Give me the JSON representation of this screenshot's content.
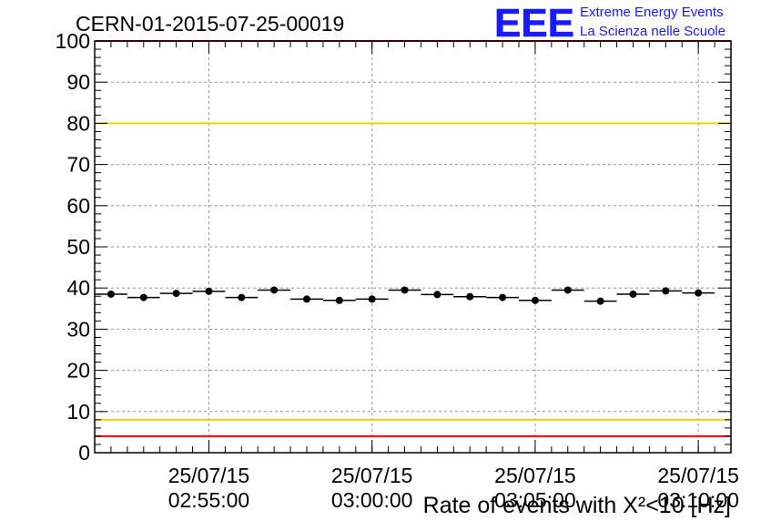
{
  "chart_data": {
    "type": "scatter",
    "title": "CERN-01-2015-07-25-00019",
    "xlabel": "Rate of events with X²<10 [Hz]",
    "ylabel": "",
    "ylim": [
      0,
      100
    ],
    "yticks": [
      0,
      10,
      20,
      30,
      40,
      50,
      60,
      70,
      80,
      90,
      100
    ],
    "xlim": [
      "2015-07-25 02:51:30",
      "2015-07-25 03:11:00"
    ],
    "xticks": [
      {
        "x": "2015-07-25 02:55:00",
        "date": "25/07/15",
        "time": "02:55:00"
      },
      {
        "x": "2015-07-25 03:00:00",
        "date": "25/07/15",
        "time": "03:00:00"
      },
      {
        "x": "2015-07-25 03:05:00",
        "date": "25/07/15",
        "time": "03:05:00"
      },
      {
        "x": "2015-07-25 03:10:00",
        "date": "25/07/15",
        "time": "03:10:00"
      }
    ],
    "grid": true,
    "bin_width_seconds": 60,
    "x": [
      "2015-07-25 02:52:00",
      "2015-07-25 02:53:00",
      "2015-07-25 02:54:00",
      "2015-07-25 02:55:00",
      "2015-07-25 02:56:00",
      "2015-07-25 02:57:00",
      "2015-07-25 02:58:00",
      "2015-07-25 02:59:00",
      "2015-07-25 03:00:00",
      "2015-07-25 03:01:00",
      "2015-07-25 03:02:00",
      "2015-07-25 03:03:00",
      "2015-07-25 03:04:00",
      "2015-07-25 03:05:00",
      "2015-07-25 03:06:00",
      "2015-07-25 03:07:00",
      "2015-07-25 03:08:00",
      "2015-07-25 03:09:00",
      "2015-07-25 03:10:00"
    ],
    "values": [
      38.5,
      37.7,
      38.7,
      39.2,
      37.7,
      39.5,
      37.3,
      37.0,
      37.3,
      39.5,
      38.4,
      37.9,
      37.7,
      37.0,
      39.5,
      36.8,
      38.5,
      39.3,
      38.8
    ],
    "reference_lines": [
      {
        "y": 80,
        "color": "#f0d000"
      },
      {
        "y": 8,
        "color": "#f0d000"
      },
      {
        "y": 100,
        "color": "#ff0000"
      },
      {
        "y": 4,
        "color": "#ff0000"
      }
    ]
  },
  "logo": {
    "mark": "EEE",
    "line1": "Extreme Energy Events",
    "line2": "La Scienza nelle Scuole",
    "color": "#1a1aff"
  }
}
